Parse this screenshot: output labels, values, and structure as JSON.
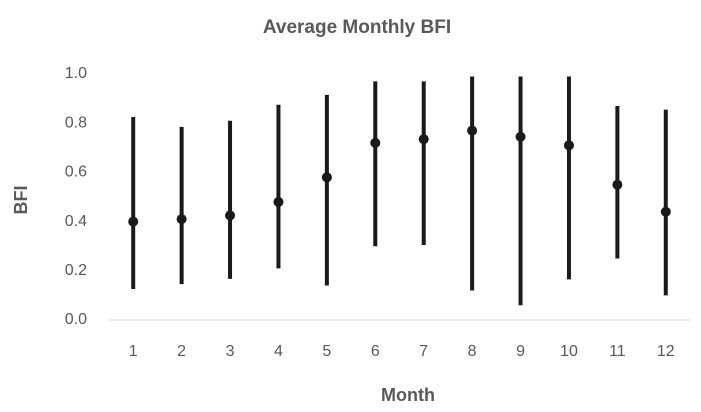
{
  "chart_data": {
    "type": "range",
    "title": "Average Monthly BFI",
    "x_label": "Month",
    "y_label": "BFI",
    "categories": [
      "1",
      "2",
      "3",
      "4",
      "5",
      "6",
      "7",
      "8",
      "9",
      "10",
      "11",
      "12"
    ],
    "values": [
      0.4,
      0.41,
      0.425,
      0.48,
      0.58,
      0.72,
      0.735,
      0.77,
      0.745,
      0.71,
      0.55,
      0.44
    ],
    "low": [
      0.126,
      0.146,
      0.167,
      0.21,
      0.14,
      0.3,
      0.305,
      0.12,
      0.06,
      0.165,
      0.25,
      0.1
    ],
    "high": [
      0.825,
      0.785,
      0.81,
      0.875,
      0.915,
      0.97,
      0.97,
      0.99,
      0.99,
      0.99,
      0.87,
      0.855
    ],
    "color": "#1a1a1a",
    "ylim": [
      0,
      1
    ],
    "yticks": [
      {
        "value": 0,
        "label": "0.0"
      },
      {
        "value": 0.2,
        "label": "0.2"
      },
      {
        "value": 0.4,
        "label": "0.4"
      },
      {
        "value": 0.6,
        "label": "0.6"
      },
      {
        "value": 0.8,
        "label": "0.8"
      },
      {
        "value": 1,
        "label": "1.0"
      }
    ],
    "grid": false
  }
}
